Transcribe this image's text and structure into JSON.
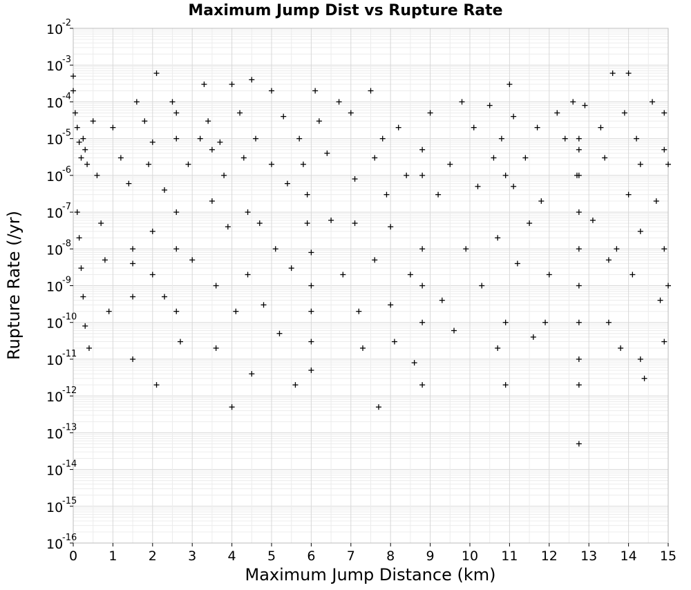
{
  "chart_data": {
    "type": "scatter",
    "title": "Maximum Jump Dist vs Rupture Rate",
    "xlabel": "Maximum Jump Distance (km)",
    "ylabel": "Rupture Rate (/yr)",
    "x_scale": "linear",
    "y_scale": "log",
    "xlim": [
      0,
      15
    ],
    "ylim": [
      1e-16,
      0.01
    ],
    "x_ticks": [
      "0",
      "1",
      "2",
      "3",
      "4",
      "5",
      "6",
      "7",
      "8",
      "9",
      "10",
      "11",
      "12",
      "13",
      "14",
      "15"
    ],
    "y_ticks": [
      {
        "base": "10",
        "exp": "-2"
      },
      {
        "base": "10",
        "exp": "-3"
      },
      {
        "base": "10",
        "exp": "-4"
      },
      {
        "base": "10",
        "exp": "-5"
      },
      {
        "base": "10",
        "exp": "-6"
      },
      {
        "base": "10",
        "exp": "-7"
      },
      {
        "base": "10",
        "exp": "-8"
      },
      {
        "base": "10",
        "exp": "-9"
      },
      {
        "base": "10",
        "exp": "-10"
      },
      {
        "base": "10",
        "exp": "-11"
      },
      {
        "base": "10",
        "exp": "-12"
      },
      {
        "base": "10",
        "exp": "-13"
      },
      {
        "base": "10",
        "exp": "-14"
      },
      {
        "base": "10",
        "exp": "-15"
      },
      {
        "base": "10",
        "exp": "-16"
      }
    ],
    "grid": true,
    "marker": "+",
    "marker_color": "#000000",
    "series": [
      {
        "points": [
          {
            "x": 0.0,
            "y": 0.0005
          },
          {
            "x": 0.0,
            "y": 0.0002
          },
          {
            "x": 0.05,
            "y": 5e-05
          },
          {
            "x": 0.1,
            "y": 2e-05
          },
          {
            "x": 0.15,
            "y": 8e-06
          },
          {
            "x": 0.2,
            "y": 3e-06
          },
          {
            "x": 0.25,
            "y": 1e-05
          },
          {
            "x": 0.3,
            "y": 5e-06
          },
          {
            "x": 0.35,
            "y": 2e-06
          },
          {
            "x": 0.1,
            "y": 1e-07
          },
          {
            "x": 0.15,
            "y": 2e-08
          },
          {
            "x": 0.2,
            "y": 3e-09
          },
          {
            "x": 0.25,
            "y": 5e-10
          },
          {
            "x": 0.3,
            "y": 8e-11
          },
          {
            "x": 0.4,
            "y": 2e-11
          },
          {
            "x": 0.5,
            "y": 3e-05
          },
          {
            "x": 0.6,
            "y": 1e-06
          },
          {
            "x": 0.7,
            "y": 5e-08
          },
          {
            "x": 0.8,
            "y": 5e-09
          },
          {
            "x": 0.9,
            "y": 2e-10
          },
          {
            "x": 1.0,
            "y": 2e-05
          },
          {
            "x": 1.2,
            "y": 3e-06
          },
          {
            "x": 1.4,
            "y": 6e-07
          },
          {
            "x": 1.5,
            "y": 1e-08
          },
          {
            "x": 1.5,
            "y": 4e-09
          },
          {
            "x": 1.5,
            "y": 5e-10
          },
          {
            "x": 1.5,
            "y": 1e-11
          },
          {
            "x": 1.6,
            "y": 0.0001
          },
          {
            "x": 1.8,
            "y": 3e-05
          },
          {
            "x": 1.9,
            "y": 2e-06
          },
          {
            "x": 2.0,
            "y": 8e-06
          },
          {
            "x": 2.0,
            "y": 3e-08
          },
          {
            "x": 2.0,
            "y": 2e-09
          },
          {
            "x": 2.1,
            "y": 0.0006
          },
          {
            "x": 2.1,
            "y": 2e-12
          },
          {
            "x": 2.3,
            "y": 4e-07
          },
          {
            "x": 2.3,
            "y": 5e-10
          },
          {
            "x": 2.5,
            "y": 0.0001
          },
          {
            "x": 2.6,
            "y": 5e-05
          },
          {
            "x": 2.6,
            "y": 1e-05
          },
          {
            "x": 2.6,
            "y": 1e-07
          },
          {
            "x": 2.6,
            "y": 1e-08
          },
          {
            "x": 2.6,
            "y": 2e-10
          },
          {
            "x": 2.7,
            "y": 3e-11
          },
          {
            "x": 2.9,
            "y": 2e-06
          },
          {
            "x": 3.0,
            "y": 5e-09
          },
          {
            "x": 3.2,
            "y": 1e-05
          },
          {
            "x": 3.3,
            "y": 0.0003
          },
          {
            "x": 3.4,
            "y": 3e-05
          },
          {
            "x": 3.5,
            "y": 5e-06
          },
          {
            "x": 3.5,
            "y": 2e-07
          },
          {
            "x": 3.6,
            "y": 1e-09
          },
          {
            "x": 3.6,
            "y": 2e-11
          },
          {
            "x": 3.7,
            "y": 8e-06
          },
          {
            "x": 3.8,
            "y": 1e-06
          },
          {
            "x": 3.9,
            "y": 4e-08
          },
          {
            "x": 4.0,
            "y": 0.0003
          },
          {
            "x": 4.0,
            "y": 5e-13
          },
          {
            "x": 4.1,
            "y": 2e-10
          },
          {
            "x": 4.2,
            "y": 5e-05
          },
          {
            "x": 4.3,
            "y": 3e-06
          },
          {
            "x": 4.4,
            "y": 1e-07
          },
          {
            "x": 4.4,
            "y": 2e-09
          },
          {
            "x": 4.5,
            "y": 0.0004
          },
          {
            "x": 4.5,
            "y": 4e-12
          },
          {
            "x": 4.6,
            "y": 1e-05
          },
          {
            "x": 4.7,
            "y": 5e-08
          },
          {
            "x": 4.8,
            "y": 3e-10
          },
          {
            "x": 5.0,
            "y": 0.0002
          },
          {
            "x": 5.0,
            "y": 2e-06
          },
          {
            "x": 5.1,
            "y": 1e-08
          },
          {
            "x": 5.2,
            "y": 5e-11
          },
          {
            "x": 5.3,
            "y": 4e-05
          },
          {
            "x": 5.4,
            "y": 6e-07
          },
          {
            "x": 5.5,
            "y": 3e-09
          },
          {
            "x": 5.6,
            "y": 2e-12
          },
          {
            "x": 5.7,
            "y": 1e-05
          },
          {
            "x": 5.8,
            "y": 2e-06
          },
          {
            "x": 5.9,
            "y": 3e-07
          },
          {
            "x": 5.9,
            "y": 5e-08
          },
          {
            "x": 6.0,
            "y": 8e-09
          },
          {
            "x": 6.0,
            "y": 1e-09
          },
          {
            "x": 6.0,
            "y": 2e-10
          },
          {
            "x": 6.0,
            "y": 3e-11
          },
          {
            "x": 6.0,
            "y": 5e-12
          },
          {
            "x": 6.1,
            "y": 0.0002
          },
          {
            "x": 6.2,
            "y": 3e-05
          },
          {
            "x": 6.4,
            "y": 4e-06
          },
          {
            "x": 6.5,
            "y": 6e-08
          },
          {
            "x": 6.7,
            "y": 0.0001
          },
          {
            "x": 6.8,
            "y": 2e-09
          },
          {
            "x": 7.0,
            "y": 5e-05
          },
          {
            "x": 7.1,
            "y": 8e-07
          },
          {
            "x": 7.1,
            "y": 5e-08
          },
          {
            "x": 7.2,
            "y": 2e-10
          },
          {
            "x": 7.3,
            "y": 2e-11
          },
          {
            "x": 7.5,
            "y": 0.0002
          },
          {
            "x": 7.6,
            "y": 3e-06
          },
          {
            "x": 7.6,
            "y": 5e-09
          },
          {
            "x": 7.7,
            "y": 5e-13
          },
          {
            "x": 7.8,
            "y": 1e-05
          },
          {
            "x": 7.9,
            "y": 3e-07
          },
          {
            "x": 8.0,
            "y": 4e-08
          },
          {
            "x": 8.0,
            "y": 3e-10
          },
          {
            "x": 8.1,
            "y": 3e-11
          },
          {
            "x": 8.2,
            "y": 2e-05
          },
          {
            "x": 8.4,
            "y": 1e-06
          },
          {
            "x": 8.5,
            "y": 2e-09
          },
          {
            "x": 8.6,
            "y": 8e-12
          },
          {
            "x": 8.8,
            "y": 5e-06
          },
          {
            "x": 8.8,
            "y": 1e-06
          },
          {
            "x": 8.8,
            "y": 1e-08
          },
          {
            "x": 8.8,
            "y": 1e-09
          },
          {
            "x": 8.8,
            "y": 1e-10
          },
          {
            "x": 8.8,
            "y": 2e-12
          },
          {
            "x": 9.0,
            "y": 5e-05
          },
          {
            "x": 9.2,
            "y": 3e-07
          },
          {
            "x": 9.3,
            "y": 4e-10
          },
          {
            "x": 9.5,
            "y": 2e-06
          },
          {
            "x": 9.6,
            "y": 6e-11
          },
          {
            "x": 9.8,
            "y": 0.0001
          },
          {
            "x": 9.9,
            "y": 1e-08
          },
          {
            "x": 10.1,
            "y": 2e-05
          },
          {
            "x": 10.2,
            "y": 5e-07
          },
          {
            "x": 10.3,
            "y": 1e-09
          },
          {
            "x": 10.5,
            "y": 8e-05
          },
          {
            "x": 10.6,
            "y": 3e-06
          },
          {
            "x": 10.7,
            "y": 2e-08
          },
          {
            "x": 10.7,
            "y": 2e-11
          },
          {
            "x": 10.8,
            "y": 1e-05
          },
          {
            "x": 10.9,
            "y": 1e-06
          },
          {
            "x": 10.9,
            "y": 1e-10
          },
          {
            "x": 10.9,
            "y": 2e-12
          },
          {
            "x": 11.0,
            "y": 0.0003
          },
          {
            "x": 11.1,
            "y": 4e-05
          },
          {
            "x": 11.1,
            "y": 5e-07
          },
          {
            "x": 11.2,
            "y": 4e-09
          },
          {
            "x": 11.4,
            "y": 3e-06
          },
          {
            "x": 11.5,
            "y": 5e-08
          },
          {
            "x": 11.6,
            "y": 4e-11
          },
          {
            "x": 11.7,
            "y": 2e-05
          },
          {
            "x": 11.8,
            "y": 2e-07
          },
          {
            "x": 11.9,
            "y": 1e-10
          },
          {
            "x": 12.0,
            "y": 2e-09
          },
          {
            "x": 12.2,
            "y": 5e-05
          },
          {
            "x": 12.4,
            "y": 1e-05
          },
          {
            "x": 12.6,
            "y": 0.0001
          },
          {
            "x": 12.7,
            "y": 1e-06
          },
          {
            "x": 12.75,
            "y": 1e-05
          },
          {
            "x": 12.75,
            "y": 5e-06
          },
          {
            "x": 12.75,
            "y": 1e-06
          },
          {
            "x": 12.75,
            "y": 1e-07
          },
          {
            "x": 12.75,
            "y": 1e-08
          },
          {
            "x": 12.75,
            "y": 1e-09
          },
          {
            "x": 12.75,
            "y": 1e-10
          },
          {
            "x": 12.75,
            "y": 1e-11
          },
          {
            "x": 12.75,
            "y": 2e-12
          },
          {
            "x": 12.75,
            "y": 5e-14
          },
          {
            "x": 12.9,
            "y": 8e-05
          },
          {
            "x": 13.1,
            "y": 6e-08
          },
          {
            "x": 13.3,
            "y": 2e-05
          },
          {
            "x": 13.4,
            "y": 3e-06
          },
          {
            "x": 13.5,
            "y": 5e-09
          },
          {
            "x": 13.5,
            "y": 1e-10
          },
          {
            "x": 13.6,
            "y": 0.0006
          },
          {
            "x": 13.7,
            "y": 1e-08
          },
          {
            "x": 13.8,
            "y": 2e-11
          },
          {
            "x": 13.9,
            "y": 5e-05
          },
          {
            "x": 14.0,
            "y": 3e-07
          },
          {
            "x": 14.0,
            "y": 0.0006
          },
          {
            "x": 14.1,
            "y": 2e-09
          },
          {
            "x": 14.2,
            "y": 1e-05
          },
          {
            "x": 14.3,
            "y": 2e-06
          },
          {
            "x": 14.3,
            "y": 3e-08
          },
          {
            "x": 14.3,
            "y": 1e-11
          },
          {
            "x": 14.4,
            "y": 3e-12
          },
          {
            "x": 14.6,
            "y": 0.0001
          },
          {
            "x": 14.7,
            "y": 2e-07
          },
          {
            "x": 14.8,
            "y": 4e-10
          },
          {
            "x": 14.9,
            "y": 5e-05
          },
          {
            "x": 14.9,
            "y": 5e-06
          },
          {
            "x": 14.9,
            "y": 1e-08
          },
          {
            "x": 14.9,
            "y": 3e-11
          },
          {
            "x": 15.0,
            "y": 2e-06
          },
          {
            "x": 15.0,
            "y": 1e-09
          }
        ]
      }
    ]
  }
}
